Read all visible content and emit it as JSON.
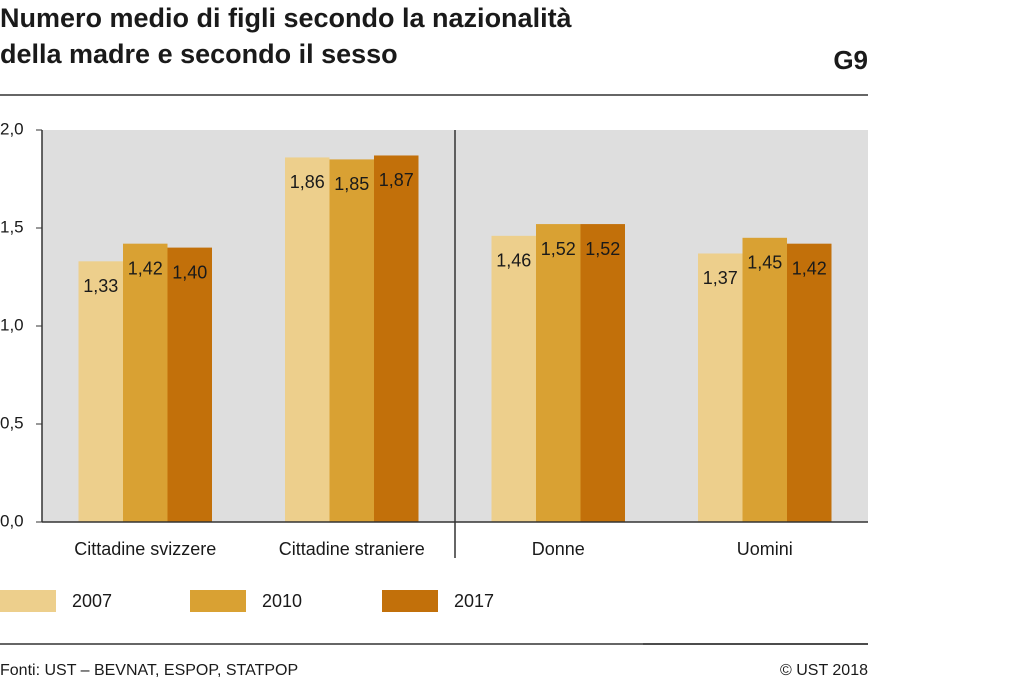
{
  "chart_data": {
    "type": "bar",
    "title": [
      "Numero medio di figli secondo la nazionalità",
      "della madre e secondo il sesso"
    ],
    "chart_id": "G9",
    "categories": [
      "Cittadine svizzere",
      "Cittadine straniere",
      "Donne",
      "Uomini"
    ],
    "series": [
      {
        "name": "2007",
        "color": "#edcf8c",
        "values": [
          1.33,
          1.86,
          1.46,
          1.37
        ],
        "value_labels": [
          "1,33",
          "1,86",
          "1,46",
          "1,37"
        ]
      },
      {
        "name": "2010",
        "color": "#d9a133",
        "values": [
          1.42,
          1.85,
          1.52,
          1.45
        ],
        "value_labels": [
          "1,42",
          "1,85",
          "1,52",
          "1,45"
        ]
      },
      {
        "name": "2017",
        "color": "#c2700a",
        "values": [
          1.4,
          1.87,
          1.52,
          1.42
        ],
        "value_labels": [
          "1,40",
          "1,87",
          "1,52",
          "1,42"
        ]
      }
    ],
    "ylim": [
      0,
      2
    ],
    "yticks": [
      {
        "value": 0,
        "label": "0,0"
      },
      {
        "value": 0.5,
        "label": "0,5"
      },
      {
        "value": 1,
        "label": "1,0"
      },
      {
        "value": 1.5,
        "label": "1,5"
      },
      {
        "value": 2,
        "label": "2,0"
      }
    ],
    "grid": false,
    "source": "Fonti: UST – BEVNAT, ESPOP, STATPOP",
    "copyright": "© UST 2018"
  }
}
